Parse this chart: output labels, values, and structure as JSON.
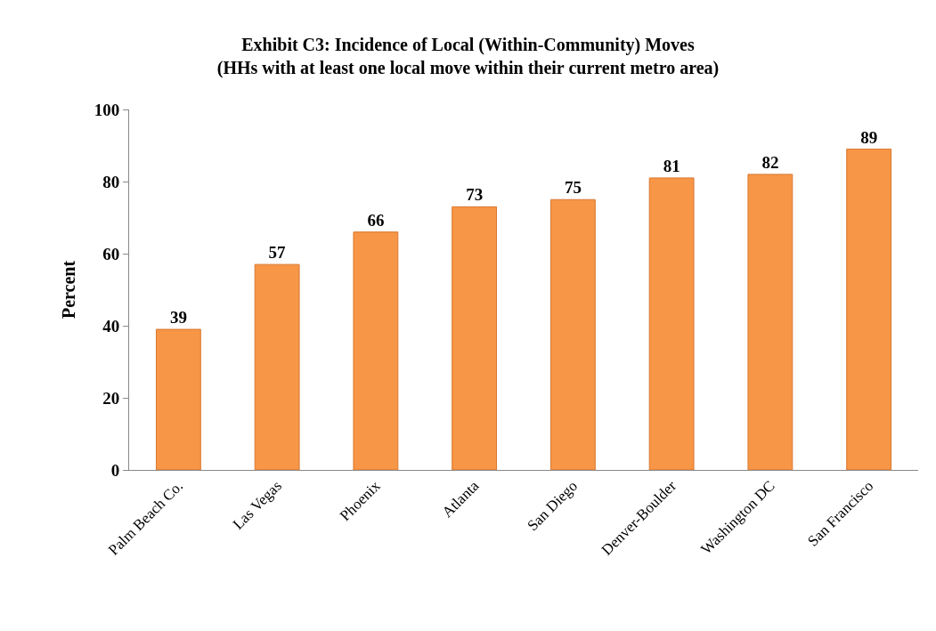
{
  "chart_data": {
    "type": "bar",
    "title": "Exhibit C3: Incidence of Local (Within-Community) Moves\n(HHs with at least one local move within their current metro area)",
    "ylabel": "Percent",
    "categories": [
      "Palm Beach Co.",
      "Las Vegas",
      "Phoenix",
      "Atlanta",
      "San Diego",
      "Denver-Boulder",
      "Washington DC",
      "San Francisco"
    ],
    "values": [
      39,
      57,
      66,
      73,
      75,
      81,
      82,
      89
    ],
    "color": "#f79646",
    "ylim": [
      0,
      100
    ],
    "yticks": [
      0,
      20,
      40,
      60,
      80,
      100
    ],
    "data_labels": true
  }
}
